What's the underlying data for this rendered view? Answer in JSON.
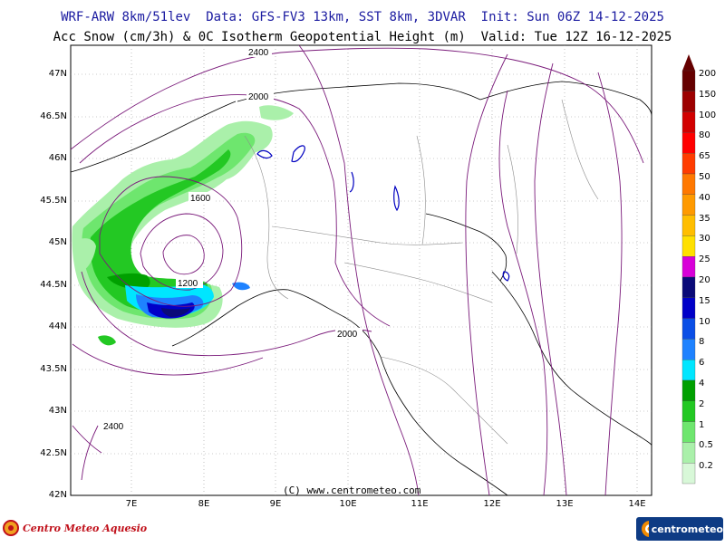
{
  "header": {
    "title_line1": "WRF-ARW 8km/51lev  Data: GFS-FV3 13km, SST 8km, 3DVAR  Init: Sun 06Z 14-12-2025",
    "title_line2": "Acc Snow (cm/3h) & 0C Isotherm Geopotential Height (m)  Valid: Tue 12Z 16-12-2025"
  },
  "map": {
    "lat_labels": [
      "47N",
      "46.5N",
      "46N",
      "45.5N",
      "45N",
      "44.5N",
      "44N",
      "43.5N",
      "43N",
      "42.5N",
      "42N"
    ],
    "lon_labels": [
      "7E",
      "8E",
      "9E",
      "10E",
      "11E",
      "12E",
      "13E",
      "14E"
    ],
    "contour_labels": [
      "2400",
      "2000",
      "1600",
      "1200",
      "2000",
      "2400"
    ],
    "copyright": "(C) www.centrometeo.com"
  },
  "legend": {
    "values": [
      "200",
      "150",
      "100",
      "80",
      "65",
      "50",
      "40",
      "35",
      "30",
      "25",
      "20",
      "15",
      "10",
      "8",
      "6",
      "4",
      "2",
      "1",
      "0.5",
      "0.2"
    ],
    "colors": [
      "#650000",
      "#9d0000",
      "#d20000",
      "#ff0000",
      "#ff3c00",
      "#ff7800",
      "#ff9a00",
      "#ffbe00",
      "#ffe000",
      "#d800d8",
      "#0a0a78",
      "#0000c8",
      "#0a4ee6",
      "#1e82ff",
      "#00e6ff",
      "#00a000",
      "#23c823",
      "#6ee66e",
      "#aaf0aa",
      "#d8f8d8"
    ],
    "units": "cm/3h"
  },
  "branding": {
    "left_logo": "Centro Meteo Aquesio",
    "right_logo": "centrometeo"
  }
}
